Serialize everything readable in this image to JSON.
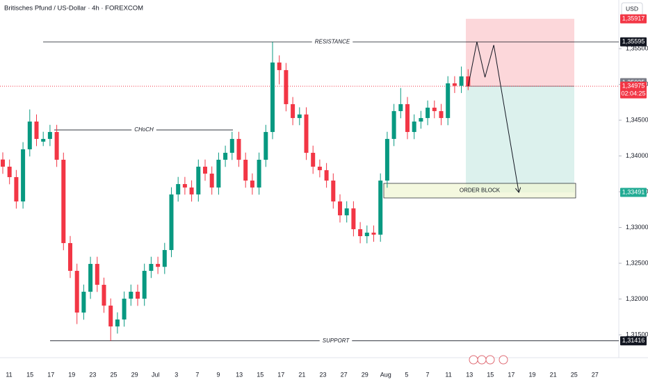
{
  "chart_data": {
    "type": "candlestick",
    "title": "Britisches Pfund / US-Dollar · 4h · FOREXCOM",
    "currency": "USD",
    "x_labels": [
      "11",
      "15",
      "17",
      "19",
      "23",
      "25",
      "29",
      "Jul",
      "3",
      "7",
      "9",
      "13",
      "15",
      "17",
      "21",
      "23",
      "27",
      "29",
      "Aug",
      "5",
      "7",
      "11",
      "13",
      "15",
      "17",
      "19",
      "21",
      "25",
      "27"
    ],
    "open": [
      1.3395,
      1.3385,
      1.33704,
      1.33364,
      1.34093,
      1.34481,
      1.342,
      1.34238,
      1.34335,
      1.33947,
      1.32782,
      1.32394,
      1.31811,
      1.32102,
      1.32491,
      1.32199,
      1.31908,
      1.31617,
      1.31714,
      1.32005,
      1.32102,
      1.32005,
      1.32394,
      1.32491,
      1.3245,
      1.32685,
      1.33462,
      1.33607,
      1.33559,
      1.33462,
      1.3385,
      1.33753,
      1.33559,
      1.33947,
      1.34044,
      1.34238,
      1.33947,
      1.33656,
      1.33559,
      1.33947,
      1.34335,
      1.35306,
      1.352,
      1.34724,
      1.3453,
      1.3458,
      1.34044,
      1.3385,
      1.33801,
      1.33656,
      1.33364,
      1.3317,
      1.33267,
      1.32976,
      1.32879,
      1.32928,
      1.329,
      1.33656,
      1.34238,
      1.34627,
      1.34724,
      1.34335,
      1.34481,
      1.3453,
      1.34675,
      1.34627,
      1.3453,
      1.35015,
      1.3498,
      1.35112
    ],
    "high": [
      1.3405,
      1.3395,
      1.33804,
      1.34193,
      1.3465,
      1.34581,
      1.34338,
      1.34435,
      1.34435,
      1.34047,
      1.32882,
      1.32494,
      1.32202,
      1.32591,
      1.32591,
      1.32299,
      1.32008,
      1.31814,
      1.32105,
      1.32202,
      1.32202,
      1.32494,
      1.32591,
      1.32591,
      1.32785,
      1.33562,
      1.33707,
      1.33707,
      1.33659,
      1.3395,
      1.3395,
      1.33853,
      1.34047,
      1.34144,
      1.34338,
      1.34338,
      1.34047,
      1.33756,
      1.34047,
      1.34435,
      1.35595,
      1.35406,
      1.353,
      1.34824,
      1.3468,
      1.3468,
      1.34144,
      1.3395,
      1.33901,
      1.33756,
      1.33464,
      1.33367,
      1.33367,
      1.33076,
      1.33028,
      1.33028,
      1.33756,
      1.34338,
      1.34727,
      1.3495,
      1.34824,
      1.34581,
      1.3463,
      1.34775,
      1.34775,
      1.34727,
      1.35115,
      1.35115,
      1.3525,
      1.35212
    ],
    "low": [
      1.3375,
      1.33604,
      1.33264,
      1.33264,
      1.33993,
      1.34138,
      1.34138,
      1.34138,
      1.33847,
      1.32682,
      1.32294,
      1.3165,
      1.31711,
      1.32002,
      1.32099,
      1.31808,
      1.31416,
      1.31517,
      1.31614,
      1.31905,
      1.31905,
      1.31905,
      1.32294,
      1.3235,
      1.3235,
      1.32585,
      1.33362,
      1.33459,
      1.33362,
      1.33362,
      1.33653,
      1.33459,
      1.33459,
      1.33847,
      1.33944,
      1.33847,
      1.33556,
      1.33459,
      1.33459,
      1.33847,
      1.34235,
      1.35,
      1.34624,
      1.3443,
      1.3443,
      1.33944,
      1.3375,
      1.33701,
      1.33556,
      1.33264,
      1.3307,
      1.3307,
      1.32876,
      1.32779,
      1.32779,
      1.328,
      1.328,
      1.33556,
      1.34138,
      1.34527,
      1.34235,
      1.34235,
      1.34381,
      1.3443,
      1.34527,
      1.3443,
      1.3443,
      1.3488,
      1.3488,
      1.3492
    ],
    "close": [
      1.3385,
      1.33704,
      1.33364,
      1.34093,
      1.34481,
      1.34238,
      1.34238,
      1.34335,
      1.33947,
      1.32782,
      1.32394,
      1.31811,
      1.32102,
      1.32491,
      1.32199,
      1.31908,
      1.31617,
      1.31714,
      1.32005,
      1.32102,
      1.32005,
      1.32394,
      1.32491,
      1.3245,
      1.32685,
      1.33462,
      1.33607,
      1.33559,
      1.33462,
      1.3385,
      1.33753,
      1.33559,
      1.33947,
      1.34044,
      1.34238,
      1.33947,
      1.33656,
      1.33559,
      1.33947,
      1.34335,
      1.35306,
      1.352,
      1.34724,
      1.3453,
      1.3458,
      1.34044,
      1.3385,
      1.33801,
      1.33656,
      1.33364,
      1.3317,
      1.33267,
      1.32976,
      1.32879,
      1.32928,
      1.329,
      1.33656,
      1.34238,
      1.34627,
      1.34724,
      1.34335,
      1.34481,
      1.3453,
      1.34675,
      1.34627,
      1.3453,
      1.35015,
      1.3498,
      1.35112,
      1.34975
    ],
    "up_color": "#089981",
    "down_color": "#f23645",
    "ylim": [
      1.3118,
      1.3618
    ],
    "yticks": [
      {
        "value": 1.315,
        "label": "1,31500"
      },
      {
        "value": 1.32,
        "label": "1,32000"
      },
      {
        "value": 1.325,
        "label": "1,32500"
      },
      {
        "value": 1.33,
        "label": "1,33000"
      },
      {
        "value": 1.335,
        "label": "1,33500"
      },
      {
        "value": 1.34,
        "label": "1,34000"
      },
      {
        "value": 1.345,
        "label": "1,34500"
      },
      {
        "value": 1.35,
        "label": "1,35000"
      },
      {
        "value": 1.355,
        "label": "1,35500"
      }
    ],
    "levels": [
      {
        "label": "RESISTANCE",
        "value": 1.35595,
        "value_label": "1,35595"
      },
      {
        "label": "CHoCH",
        "value": 1.34364
      },
      {
        "label": "SUPPORT",
        "value": 1.31416,
        "value_label": "1,31416"
      }
    ],
    "order_block": {
      "label": "ORDER BLOCK",
      "top": 1.33617,
      "bottom": 1.33413
    },
    "position": {
      "entry": 1.34975,
      "stop": 1.35917,
      "target": 1.33491,
      "stop_label": "1,35917",
      "target_label": "1,33491"
    },
    "last_price": {
      "value": 1.34975,
      "label": "1,34975",
      "countdown": "02:04:25",
      "color": "#f23645"
    },
    "prev_marker": {
      "value": 1.35025,
      "label": "1,35025"
    },
    "projection": {
      "x": [
        69,
        70.3,
        71.5,
        72.8,
        76.5
      ],
      "values": [
        1.34975,
        1.35595,
        1.351,
        1.3555,
        1.335
      ]
    }
  }
}
